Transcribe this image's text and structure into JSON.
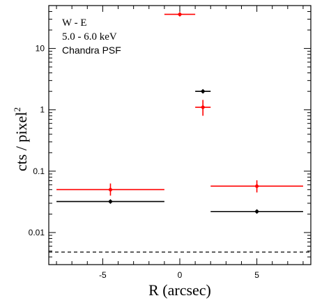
{
  "chart_data": {
    "type": "scatter",
    "title": "",
    "xlabel": "R (arcsec)",
    "ylabel_base": "cts / pixel",
    "ylabel_superscript": "2",
    "xlim": [
      -8.5,
      8.5
    ],
    "ylim": [
      0.003,
      50
    ],
    "yscale": "log",
    "grid": false,
    "x_ticks": [
      -5,
      0,
      5
    ],
    "x_tick_labels": [
      "-5",
      "0",
      "5"
    ],
    "y_ticks": [
      0.01,
      0.1,
      1,
      10
    ],
    "y_tick_labels": [
      "0.01",
      "0.1",
      "1",
      "10"
    ],
    "legend_position": "top-left",
    "legend_lines": [
      {
        "text": "W - E",
        "color": "#ff0000"
      },
      {
        "text": "5.0 - 6.0 keV",
        "color": "#ff0000"
      },
      {
        "text": "Chandra PSF",
        "color": "#000000"
      }
    ],
    "series": [
      {
        "color": "#ff0000",
        "points": [
          {
            "x": 0.0,
            "xerr": 1.0,
            "y": 36.0,
            "ylo": 34.5,
            "yhi": 37.5
          },
          {
            "x": 1.5,
            "xerr": 0.5,
            "y": 1.1,
            "ylo": 0.8,
            "yhi": 1.45
          },
          {
            "x": -4.5,
            "xerr": 3.5,
            "y": 0.05,
            "ylo": 0.04,
            "yhi": 0.063
          },
          {
            "x": 5.0,
            "xerr": 3.0,
            "y": 0.057,
            "ylo": 0.045,
            "yhi": 0.071
          }
        ]
      },
      {
        "color": "#000000",
        "points": [
          {
            "x": 1.5,
            "xerr": 0.5,
            "y": 2.0,
            "ylo": 2.0,
            "yhi": 2.0
          },
          {
            "x": -4.5,
            "xerr": 3.5,
            "y": 0.032,
            "ylo": 0.032,
            "yhi": 0.032
          },
          {
            "x": 5.0,
            "xerr": 3.0,
            "y": 0.022,
            "ylo": 0.022,
            "yhi": 0.022
          }
        ]
      }
    ],
    "reference_line": {
      "y": 0.0048,
      "style": "dashed",
      "color": "#000000"
    }
  }
}
